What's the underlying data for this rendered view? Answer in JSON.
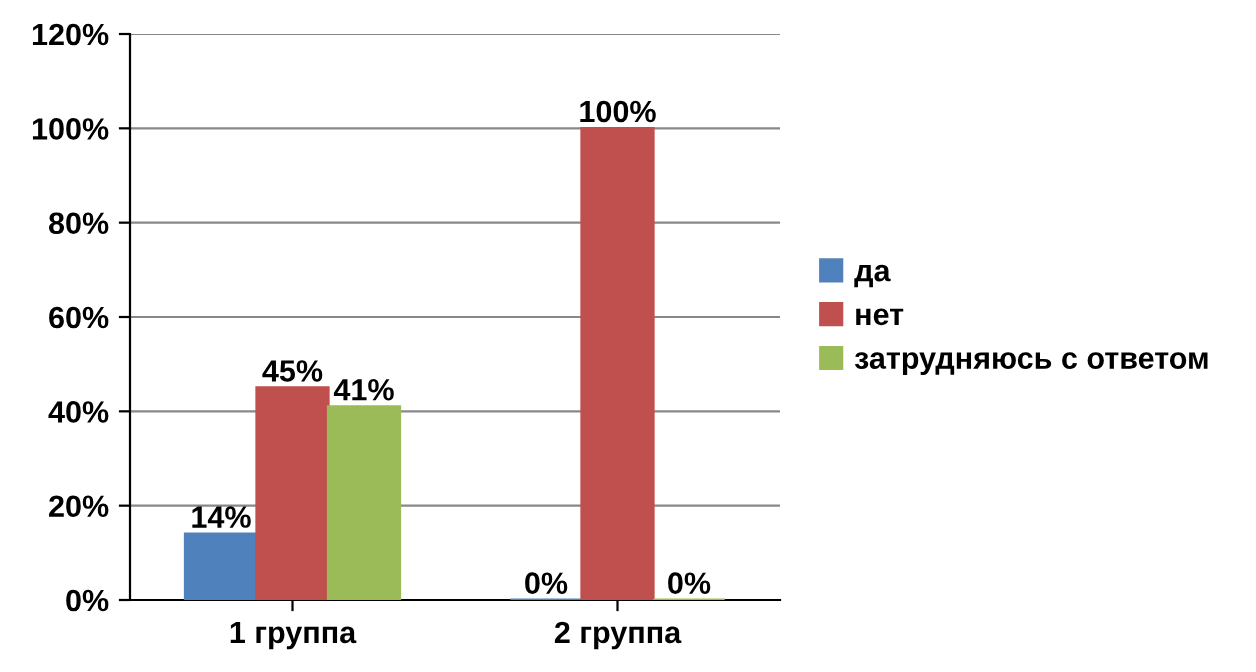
{
  "chart_data": {
    "type": "bar",
    "categories": [
      "1 группа",
      "2 группа"
    ],
    "series": [
      {
        "name": "да",
        "color": "#4f81bd",
        "values": [
          14,
          0
        ],
        "value_labels": [
          "14%",
          "0%"
        ]
      },
      {
        "name": "нет",
        "color": "#c0504d",
        "values": [
          45,
          100
        ],
        "value_labels": [
          "45%",
          "100%"
        ]
      },
      {
        "name": "затрудняюсь с ответом",
        "color": "#9bbb59",
        "values": [
          41,
          0
        ],
        "value_labels": [
          "41%",
          "0%"
        ]
      }
    ],
    "ylim": [
      0,
      120
    ],
    "yticks": [
      {
        "value": 0,
        "label": "0%"
      },
      {
        "value": 20,
        "label": "20%"
      },
      {
        "value": 40,
        "label": "40%"
      },
      {
        "value": 60,
        "label": "60%"
      },
      {
        "value": 80,
        "label": "80%"
      },
      {
        "value": 100,
        "label": "100%"
      },
      {
        "value": 120,
        "label": "120%"
      }
    ],
    "grid": "y",
    "legend": "right"
  }
}
